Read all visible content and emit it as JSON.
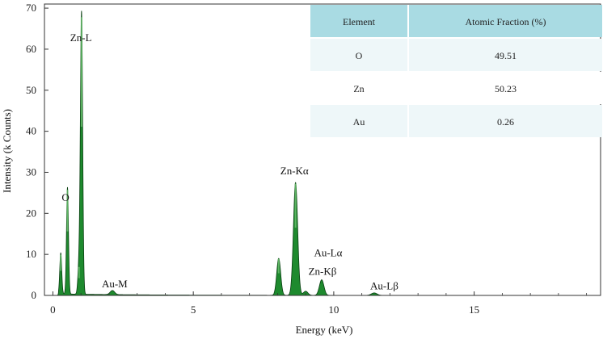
{
  "chart_data": {
    "type": "area",
    "xlabel": "Energy (keV)",
    "ylabel": "Intensity (k Counts)",
    "xlim": [
      -0.3,
      19.5
    ],
    "ylim": [
      0,
      71
    ],
    "x_ticks": [
      0,
      5,
      10,
      15
    ],
    "y_ticks": [
      0,
      10,
      20,
      30,
      40,
      50,
      60,
      70
    ],
    "grid": false,
    "colors": {
      "fill": "#1e8a2e",
      "line": "#0a3f12",
      "highlight": "#6cc070"
    },
    "peaks": [
      {
        "label": "",
        "energy": 0.28,
        "height": 10,
        "width": 0.035
      },
      {
        "label": "O",
        "energy": 0.52,
        "height": 26,
        "width": 0.035
      },
      {
        "label": "",
        "energy": 0.93,
        "height": 7,
        "width": 0.04
      },
      {
        "label": "Zn-L",
        "energy": 1.02,
        "height": 68.5,
        "width": 0.04
      },
      {
        "label": "Au-M",
        "energy": 2.12,
        "height": 1,
        "width": 0.08
      },
      {
        "label": "",
        "energy": 8.04,
        "height": 9,
        "width": 0.07
      },
      {
        "label": "Zn-Kα",
        "energy": 8.64,
        "height": 27.5,
        "width": 0.075
      },
      {
        "label": "",
        "energy": 9.0,
        "height": 1,
        "width": 0.08
      },
      {
        "label": "Au-Lα",
        "energy": 9.57,
        "height": 3.8,
        "width": 0.08
      },
      {
        "label": "Zn-Kβ",
        "energy": 9.67,
        "height": 0,
        "width": 0.08
      },
      {
        "label": "Au-Lβ",
        "energy": 11.44,
        "height": 0.6,
        "width": 0.1
      }
    ],
    "peak_label_positions": [
      {
        "label": "Zn-L",
        "energy": 1.0,
        "intensity": 62
      },
      {
        "label": "O",
        "energy": 0.45,
        "intensity": 23
      },
      {
        "label": "Au-M",
        "energy": 2.2,
        "intensity": 2
      },
      {
        "label": "Zn-Kα",
        "energy": 8.6,
        "intensity": 29.5
      },
      {
        "label": "Au-Lα",
        "energy": 9.8,
        "intensity": 9.5
      },
      {
        "label": "Zn-Kβ",
        "energy": 9.6,
        "intensity": 5
      },
      {
        "label": "Au-Lβ",
        "energy": 11.8,
        "intensity": 1.5
      }
    ],
    "table": {
      "headers": [
        "Element",
        "Atomic Fraction (%)"
      ],
      "rows": [
        [
          "O",
          "49.51"
        ],
        [
          "Zn",
          "50.23"
        ],
        [
          "Au",
          "0.26"
        ]
      ]
    }
  }
}
